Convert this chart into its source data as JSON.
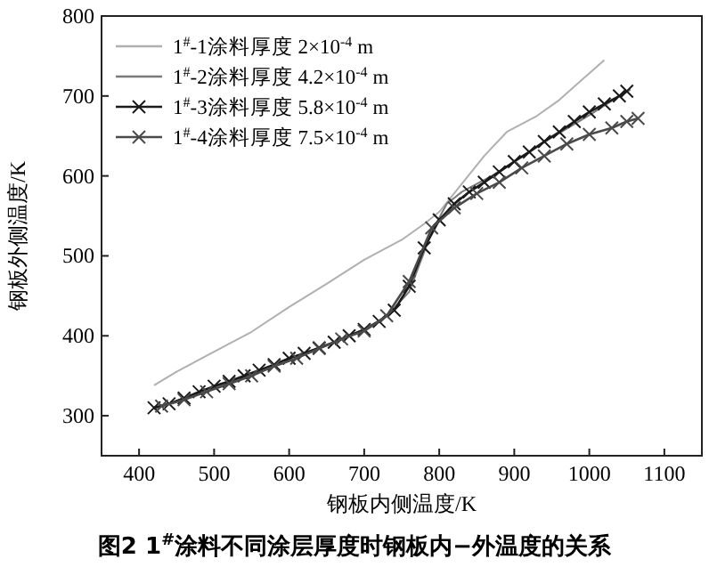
{
  "chart_data": {
    "type": "line",
    "title": "图2  1$^{#}$涂料不同涂层厚度时钢板内−外温度的关系",
    "xlabel": "钢板内侧温度/K",
    "ylabel": "钢板外侧温度/K",
    "xlim": [
      350,
      1150
    ],
    "ylim": [
      250,
      800
    ],
    "xticks": [
      400,
      500,
      600,
      700,
      800,
      900,
      1000,
      1100
    ],
    "yticks": [
      300,
      400,
      500,
      600,
      700,
      800
    ],
    "grid": false,
    "legend": "top left",
    "series": [
      {
        "name": "1$^{#}$-1涂料厚度 2×10$^{-4}$ m",
        "color": "#b0b0b0",
        "marker": "none",
        "x": [
          420,
          450,
          500,
          550,
          600,
          650,
          700,
          750,
          780,
          800,
          830,
          860,
          890,
          930,
          960,
          990,
          1020
        ],
        "values": [
          338,
          355,
          380,
          405,
          436,
          465,
          495,
          520,
          540,
          555,
          590,
          625,
          655,
          675,
          695,
          720,
          745
        ]
      },
      {
        "name": "1$^{#}$-2涂料厚度 4.2×10$^{-4}$ m",
        "color": "#7a7a7a",
        "marker": "none",
        "x": [
          420,
          460,
          500,
          550,
          600,
          650,
          700,
          730,
          760,
          790,
          810,
          830,
          870,
          900,
          950,
          1000,
          1040,
          1055
        ],
        "values": [
          308,
          322,
          335,
          352,
          372,
          388,
          408,
          425,
          455,
          530,
          565,
          580,
          600,
          618,
          648,
          676,
          700,
          708
        ]
      },
      {
        "name": "1$^{#}$-3涂料厚度 5.8×10$^{-4}$ m",
        "color": "#1a1a1a",
        "marker": "cross",
        "x": [
          420,
          440,
          460,
          480,
          500,
          520,
          540,
          560,
          580,
          600,
          620,
          640,
          660,
          680,
          700,
          720,
          740,
          760,
          780,
          800,
          820,
          840,
          860,
          880,
          900,
          920,
          940,
          960,
          980,
          1000,
          1020,
          1040,
          1050
        ],
        "values": [
          310,
          315,
          322,
          330,
          337,
          343,
          350,
          357,
          364,
          372,
          378,
          385,
          392,
          400,
          408,
          418,
          432,
          462,
          510,
          545,
          565,
          580,
          592,
          605,
          618,
          630,
          643,
          655,
          668,
          680,
          690,
          700,
          706
        ]
      },
      {
        "name": "1$^{#}$-4涂料厚度 7.5×10$^{-4}$ m",
        "color": "#4a4a4a",
        "marker": "cross",
        "x": [
          430,
          460,
          490,
          520,
          550,
          580,
          610,
          640,
          670,
          700,
          730,
          760,
          790,
          820,
          850,
          880,
          910,
          940,
          970,
          1000,
          1030,
          1050,
          1065
        ],
        "values": [
          312,
          320,
          330,
          340,
          350,
          362,
          372,
          384,
          396,
          406,
          425,
          468,
          535,
          560,
          578,
          592,
          610,
          625,
          640,
          652,
          660,
          668,
          672
        ]
      }
    ]
  }
}
